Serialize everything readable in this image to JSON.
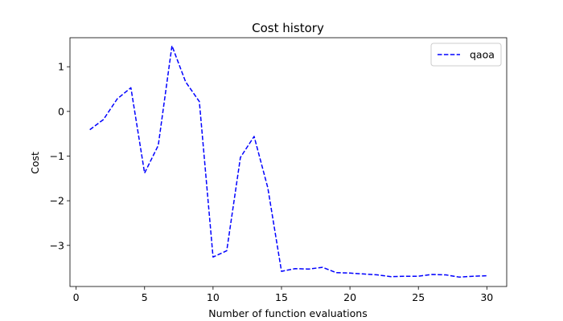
{
  "chart_data": {
    "type": "line",
    "title": "Cost history",
    "xlabel": "Number of function evaluations",
    "ylabel": "Cost",
    "xlim": [
      -0.45,
      31.45
    ],
    "ylim": [
      -3.92,
      1.65
    ],
    "xticks": [
      0,
      5,
      10,
      15,
      20,
      25,
      30
    ],
    "yticks": [
      1,
      0,
      -1,
      -2,
      -3
    ],
    "xtick_labels": [
      "0",
      "5",
      "10",
      "15",
      "20",
      "25",
      "30"
    ],
    "ytick_labels": [
      "1",
      "0",
      "−1",
      "−2",
      "−3"
    ],
    "grid": false,
    "legend_position": "upper right",
    "series": [
      {
        "name": "qaoa",
        "color": "#0000ff",
        "linestyle": "dashed",
        "x": [
          1,
          2,
          3,
          4,
          5,
          6,
          7,
          8,
          9,
          10,
          11,
          12,
          13,
          14,
          15,
          16,
          17,
          18,
          19,
          20,
          21,
          22,
          23,
          24,
          25,
          26,
          27,
          28,
          29,
          30
        ],
        "y": [
          -0.41,
          -0.18,
          0.28,
          0.53,
          -1.38,
          -0.76,
          1.47,
          0.66,
          0.22,
          -3.26,
          -3.12,
          -1.03,
          -0.56,
          -1.71,
          -3.58,
          -3.52,
          -3.53,
          -3.49,
          -3.61,
          -3.62,
          -3.64,
          -3.66,
          -3.7,
          -3.69,
          -3.69,
          -3.65,
          -3.66,
          -3.71,
          -3.69,
          -3.68
        ]
      }
    ]
  }
}
